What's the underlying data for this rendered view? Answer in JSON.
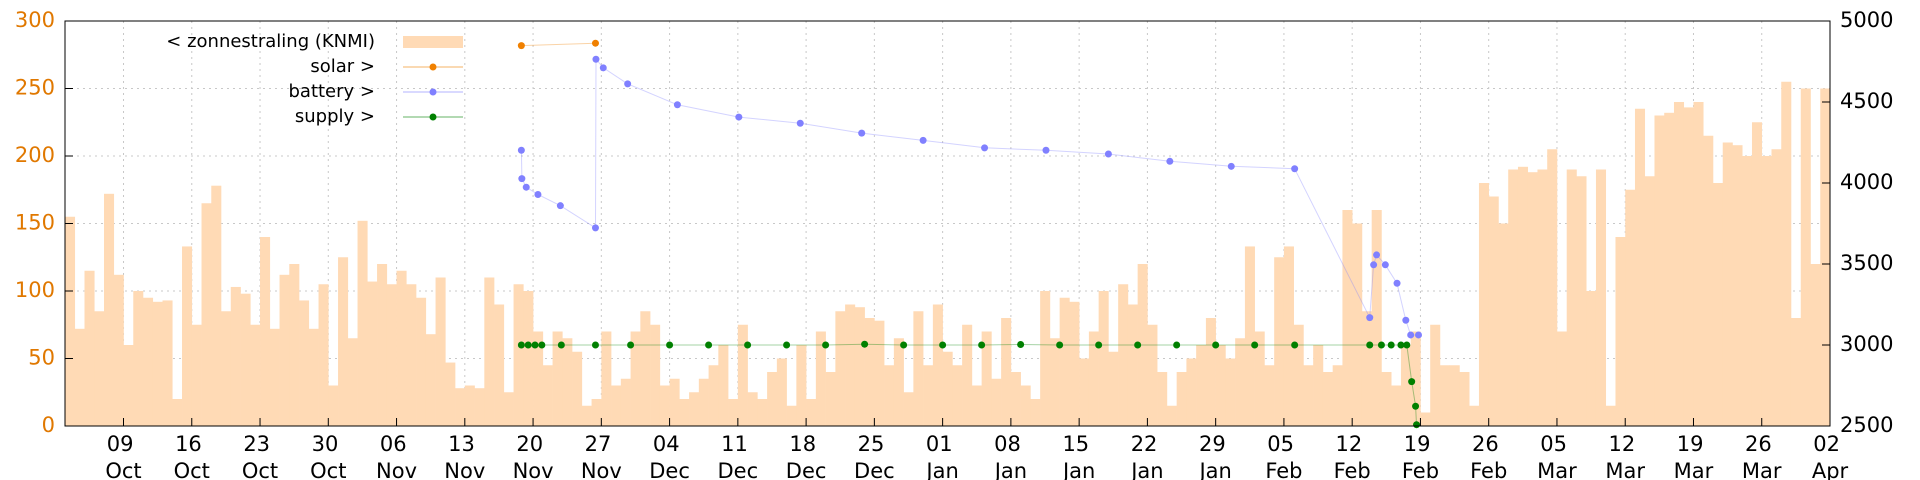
{
  "chart_data": {
    "type": "combo",
    "xlim": [
      0,
      181
    ],
    "xticks": [
      {
        "value": 6,
        "label": "09 Oct"
      },
      {
        "value": 13,
        "label": "16 Oct"
      },
      {
        "value": 20,
        "label": "23 Oct"
      },
      {
        "value": 27,
        "label": "30 Oct"
      },
      {
        "value": 34,
        "label": "06 Nov"
      },
      {
        "value": 41,
        "label": "13 Nov"
      },
      {
        "value": 48,
        "label": "20 Nov"
      },
      {
        "value": 55,
        "label": "27 Nov"
      },
      {
        "value": 62,
        "label": "04 Dec"
      },
      {
        "value": 69,
        "label": "11 Dec"
      },
      {
        "value": 76,
        "label": "18 Dec"
      },
      {
        "value": 83,
        "label": "25 Dec"
      },
      {
        "value": 90,
        "label": "01 Jan"
      },
      {
        "value": 97,
        "label": "08 Jan"
      },
      {
        "value": 104,
        "label": "15 Jan"
      },
      {
        "value": 111,
        "label": "22 Jan"
      },
      {
        "value": 118,
        "label": "29 Jan"
      },
      {
        "value": 125,
        "label": "05 Feb"
      },
      {
        "value": 132,
        "label": "12 Feb"
      },
      {
        "value": 139,
        "label": "19 Feb"
      },
      {
        "value": 146,
        "label": "26 Feb"
      },
      {
        "value": 153,
        "label": "05 Mar"
      },
      {
        "value": 160,
        "label": "12 Mar"
      },
      {
        "value": 167,
        "label": "19 Mar"
      },
      {
        "value": 174,
        "label": "26 Mar"
      },
      {
        "value": 181,
        "label": "02 Apr"
      }
    ],
    "ylim": [
      0,
      300
    ],
    "yticks": [
      0,
      50,
      100,
      150,
      200,
      250,
      300
    ],
    "y2lim": [
      2500,
      5000
    ],
    "y2ticks": [
      2500,
      3000,
      3500,
      4000,
      4500,
      5000
    ],
    "grid": true,
    "legend": "top-left",
    "series": [
      {
        "name": "< zonnestraling (KNMI)",
        "type": "bar",
        "color": "#ffdab5",
        "x": [
          0,
          1,
          2,
          3,
          4,
          5,
          6,
          7,
          8,
          9,
          10,
          11,
          12,
          13,
          14,
          15,
          16,
          17,
          18,
          19,
          20,
          21,
          22,
          23,
          24,
          25,
          26,
          27,
          28,
          29,
          30,
          31,
          32,
          33,
          34,
          35,
          36,
          37,
          38,
          39,
          40,
          41,
          42,
          43,
          44,
          45,
          46,
          47,
          48,
          49,
          50,
          51,
          52,
          53,
          54,
          55,
          56,
          57,
          58,
          59,
          60,
          61,
          62,
          63,
          64,
          65,
          66,
          67,
          68,
          69,
          70,
          71,
          72,
          73,
          74,
          75,
          76,
          77,
          78,
          79,
          80,
          81,
          82,
          83,
          84,
          85,
          86,
          87,
          88,
          89,
          90,
          91,
          92,
          93,
          94,
          95,
          96,
          97,
          98,
          99,
          100,
          101,
          102,
          103,
          104,
          105,
          106,
          107,
          108,
          109,
          110,
          111,
          112,
          113,
          114,
          115,
          116,
          117,
          118,
          119,
          120,
          121,
          122,
          123,
          124,
          125,
          126,
          127,
          128,
          129,
          130,
          131,
          132,
          133,
          134,
          135,
          136,
          137,
          138,
          139,
          140,
          141,
          142,
          143,
          144,
          145,
          146,
          147,
          148,
          149,
          150,
          151,
          152,
          153,
          154,
          155,
          156,
          157,
          158,
          159,
          160,
          161,
          162,
          163,
          164,
          165,
          166,
          167,
          168,
          169,
          170,
          171,
          172,
          173,
          174,
          175,
          176,
          177,
          178,
          179,
          180
        ],
        "values": [
          155,
          72,
          115,
          85,
          172,
          112,
          60,
          100,
          95,
          92,
          93,
          20,
          133,
          75,
          165,
          178,
          85,
          103,
          98,
          75,
          140,
          72,
          112,
          120,
          93,
          72,
          105,
          30,
          125,
          65,
          152,
          107,
          120,
          105,
          115,
          105,
          95,
          68,
          110,
          47,
          28,
          30,
          28,
          110,
          90,
          25,
          105,
          100,
          70,
          45,
          70,
          65,
          55,
          15,
          20,
          70,
          30,
          35,
          70,
          85,
          75,
          30,
          35,
          20,
          25,
          35,
          45,
          60,
          20,
          75,
          25,
          20,
          40,
          50,
          15,
          60,
          20,
          70,
          40,
          85,
          90,
          88,
          80,
          78,
          45,
          65,
          25,
          85,
          45,
          90,
          55,
          45,
          75,
          30,
          70,
          35,
          80,
          40,
          30,
          20,
          100,
          65,
          95,
          92,
          50,
          70,
          100,
          55,
          105,
          90,
          120,
          75,
          40,
          15,
          40,
          50,
          60,
          80,
          60,
          50,
          65,
          133,
          70,
          45,
          125,
          133,
          75,
          45,
          60,
          40,
          45,
          160,
          150,
          85,
          160,
          40,
          30,
          60,
          70,
          10,
          75,
          45,
          45,
          40,
          15,
          180,
          170,
          150,
          190,
          192,
          188,
          190,
          205,
          70,
          190,
          185,
          100,
          190,
          15,
          140,
          175,
          235,
          185,
          230,
          232,
          240,
          236,
          240,
          215,
          180,
          210,
          208,
          200,
          225,
          200,
          205,
          255,
          80,
          250,
          120,
          250
        ]
      },
      {
        "name": "solar >",
        "type": "line",
        "axis": "y2",
        "color": "#f08000",
        "x": [
          46.8,
          54.4
        ],
        "values": [
          4848,
          4863
        ]
      },
      {
        "name": "battery >",
        "type": "line",
        "axis": "y2",
        "color": "#8080ff",
        "x": [
          46.8,
          46.85,
          47.3,
          48.5,
          50.8,
          54.4,
          54.45,
          55.2,
          57.7,
          62.8,
          69.1,
          75.4,
          81.7,
          88.0,
          94.3,
          100.6,
          107.0,
          113.3,
          119.6,
          126.1,
          133.8,
          134.2,
          134.5,
          135.4,
          136.6,
          137.5,
          138.0,
          138.8
        ],
        "values": [
          4202,
          4027,
          3974,
          3929,
          3860,
          3723,
          4764,
          4711,
          4612,
          4483,
          4407,
          4369,
          4308,
          4263,
          4217,
          4202,
          4179,
          4134,
          4103,
          4088,
          3169,
          3495,
          3556,
          3495,
          3381,
          3153,
          3062,
          3062
        ]
      },
      {
        "name": "supply >",
        "type": "line",
        "axis": "y2",
        "color": "#008000",
        "x": [
          46.8,
          47.5,
          48.2,
          48.9,
          50.9,
          54.4,
          58,
          62,
          66,
          70,
          74,
          78,
          82,
          86,
          90,
          94,
          98,
          102,
          106,
          110,
          114,
          118,
          122,
          126.1,
          133.8,
          135,
          136,
          137,
          137.6,
          138.1,
          138.5,
          138.6
        ],
        "values": [
          3000,
          3000,
          3000,
          3000,
          3000,
          3000,
          3000,
          3000,
          3000,
          3000,
          3000,
          3000,
          3005,
          3000,
          3000,
          3000,
          3003,
          3000,
          3000,
          3000,
          3000,
          3000,
          3000,
          3000,
          3000,
          3000,
          3000,
          3000,
          3000,
          2774,
          2622,
          2508
        ]
      }
    ]
  }
}
